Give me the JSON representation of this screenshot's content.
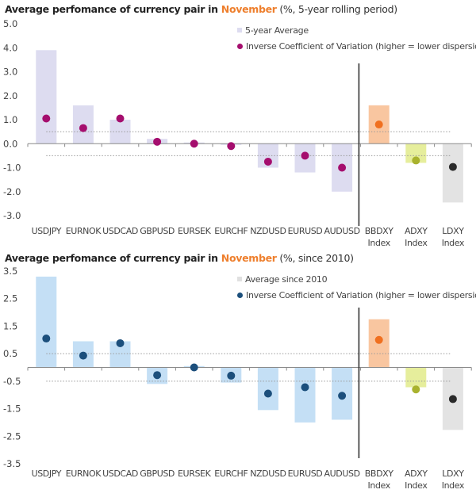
{
  "chart_data": [
    {
      "type": "bar",
      "title_prefix": "Average perfomance of currency pair in ",
      "title_highlight": "November",
      "title_suffix": " (%, 5-year rolling period)",
      "categories": [
        "USDJPY",
        "EURNOK",
        "USDCAD",
        "GBPUSD",
        "EURSEK",
        "EURCHF",
        "NZDUSD",
        "EURUSD",
        "AUDUSD",
        "BBDXY Index",
        "ADXY Index",
        "LDXY Index"
      ],
      "category_lines": [
        [
          "USDJPY"
        ],
        [
          "EURNOK"
        ],
        [
          "USDCAD"
        ],
        [
          "GBPUSD"
        ],
        [
          "EURSEK"
        ],
        [
          "EURCHF"
        ],
        [
          "NZDUSD"
        ],
        [
          "EURUSD"
        ],
        [
          "AUDUSD"
        ],
        [
          "BBDXY",
          "Index"
        ],
        [
          "ADXY",
          "Index"
        ],
        [
          "LDXY",
          "Index"
        ]
      ],
      "series": [
        {
          "name": "5-year Average",
          "kind": "bar",
          "values": [
            3.9,
            1.6,
            1.0,
            0.2,
            0.05,
            -0.05,
            -1.0,
            -1.2,
            -2.0,
            1.6,
            -0.8,
            -2.45
          ]
        },
        {
          "name": "Inverse Coefficient of Variation (higher = lower dispersion)",
          "kind": "dot",
          "values": [
            1.05,
            0.65,
            1.05,
            0.08,
            0.0,
            -0.1,
            -0.75,
            -0.5,
            -1.0,
            0.8,
            -0.7,
            -0.97
          ]
        }
      ],
      "bar_colors": [
        "#dddcf0",
        "#dddcf0",
        "#dddcf0",
        "#dddcf0",
        "#dddcf0",
        "#dddcf0",
        "#dddcf0",
        "#dddcf0",
        "#dddcf0",
        "#f9c6a0",
        "#e6ee9c",
        "#e3e3e3"
      ],
      "dot_colors": [
        "#a50e6e",
        "#a50e6e",
        "#a50e6e",
        "#a50e6e",
        "#a50e6e",
        "#a50e6e",
        "#a50e6e",
        "#a50e6e",
        "#a50e6e",
        "#f07020",
        "#a9b22e",
        "#2a2a2a"
      ],
      "legend_bar_color": "#dddcf0",
      "legend_dot_color": "#a50e6e",
      "ylim": [
        -3.0,
        5.0
      ],
      "yticks": [
        5.0,
        4.0,
        3.0,
        2.0,
        1.0,
        0.0,
        -1.0,
        -2.0,
        -3.0
      ],
      "ytick_labels": [
        "5.0",
        "4.0",
        "3.0",
        "2.0",
        "1.0",
        "0.0",
        "-1.0",
        "-2.0",
        "-3.0"
      ],
      "reference_lines": [
        0.5,
        -0.5
      ],
      "separator_after_index": 8,
      "xlabel": "",
      "ylabel": "",
      "legend_position": "top-right"
    },
    {
      "type": "bar",
      "title_prefix": "Average perfomance of currency pair in ",
      "title_highlight": "November",
      "title_suffix": " (%, since 2010)",
      "categories": [
        "USDJPY",
        "EURNOK",
        "USDCAD",
        "GBPUSD",
        "EURSEK",
        "EURCHF",
        "NZDUSD",
        "EURUSD",
        "AUDUSD",
        "BBDXY Index",
        "ADXY Index",
        "LDXY Index"
      ],
      "category_lines": [
        [
          "USDJPY"
        ],
        [
          "EURNOK"
        ],
        [
          "USDCAD"
        ],
        [
          "GBPUSD"
        ],
        [
          "EURSEK"
        ],
        [
          "EURCHF"
        ],
        [
          "NZDUSD"
        ],
        [
          "EURUSD"
        ],
        [
          "AUDUSD"
        ],
        [
          "BBDXY",
          "Index"
        ],
        [
          "ADXY",
          "Index"
        ],
        [
          "LDXY",
          "Index"
        ]
      ],
      "series": [
        {
          "name": "Average since 2010",
          "kind": "bar",
          "values": [
            3.3,
            0.95,
            0.95,
            -0.6,
            0.05,
            -0.55,
            -1.55,
            -2.0,
            -1.9,
            1.75,
            -0.72,
            -2.27
          ]
        },
        {
          "name": "Inverse Coefficient of Variation (higher = lower dispersion)",
          "kind": "dot",
          "values": [
            1.05,
            0.43,
            0.88,
            -0.28,
            0.0,
            -0.3,
            -0.95,
            -0.72,
            -1.03,
            1.0,
            -0.8,
            -1.15
          ]
        }
      ],
      "bar_colors": [
        "#c4dff5",
        "#c4dff5",
        "#c4dff5",
        "#c4dff5",
        "#c4dff5",
        "#c4dff5",
        "#c4dff5",
        "#c4dff5",
        "#c4dff5",
        "#f9c6a0",
        "#e6ee9c",
        "#e3e3e3"
      ],
      "dot_colors": [
        "#1c4f7c",
        "#1c4f7c",
        "#1c4f7c",
        "#1c4f7c",
        "#1c4f7c",
        "#1c4f7c",
        "#1c4f7c",
        "#1c4f7c",
        "#1c4f7c",
        "#f07020",
        "#a9b22e",
        "#2a2a2a"
      ],
      "legend_bar_color": "#e0e0e0",
      "legend_dot_color": "#1c4f7c",
      "ylim": [
        -3.5,
        3.5
      ],
      "yticks": [
        3.5,
        2.5,
        1.5,
        0.5,
        -0.5,
        -1.5,
        -2.5,
        -3.5
      ],
      "ytick_labels": [
        "3.5",
        "2.5",
        "1.5",
        "0.5",
        "-0.5",
        "-1.5",
        "-2.5",
        "-3.5"
      ],
      "reference_lines": [
        0.5,
        -0.5
      ],
      "separator_after_index": 8,
      "xlabel": "",
      "ylabel": "",
      "legend_position": "top-right"
    }
  ]
}
